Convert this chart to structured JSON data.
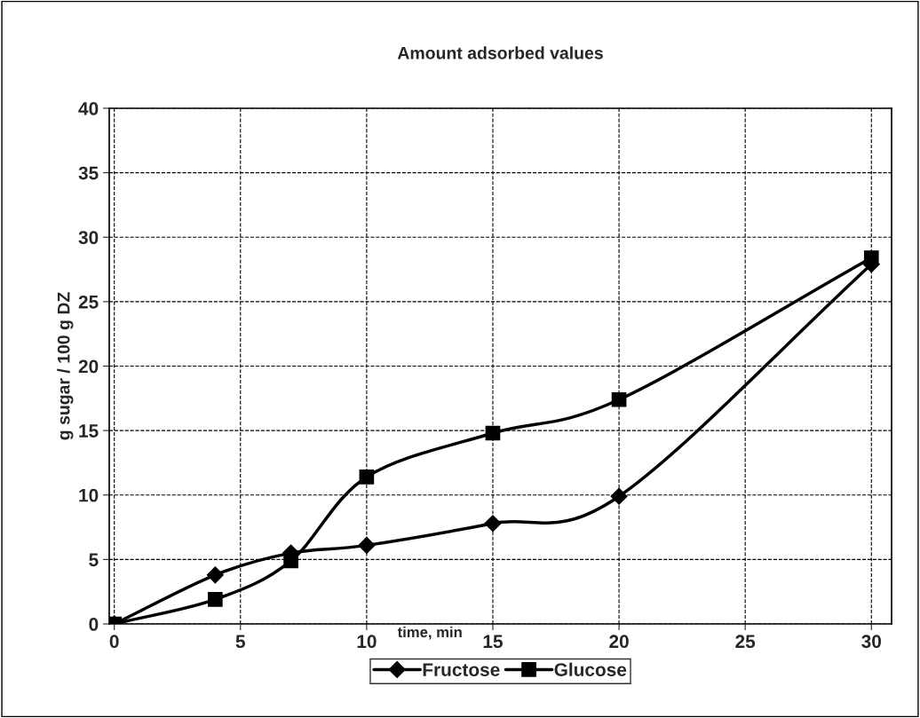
{
  "chart_data": {
    "type": "line",
    "title": "Amount adsorbed values",
    "xlabel": "time, min",
    "ylabel": "g sugar / 100 g DZ",
    "x": [
      0,
      4,
      7,
      10,
      15,
      20,
      30
    ],
    "series": [
      {
        "name": "Fructose",
        "color": "#000000",
        "marker": "diamond",
        "values": [
          0,
          3.8,
          5.5,
          6.1,
          7.8,
          9.9,
          27.9
        ]
      },
      {
        "name": "Glucose",
        "color": "#000000",
        "marker": "square",
        "values": [
          0,
          1.9,
          4.9,
          11.4,
          14.8,
          17.4,
          28.4
        ]
      }
    ],
    "xlim": [
      -0.2,
      30.8
    ],
    "xticks": [
      0,
      5,
      10,
      15,
      20,
      25,
      30
    ],
    "ylim": [
      0,
      40
    ],
    "yticks": [
      0,
      5,
      10,
      15,
      20,
      25,
      30,
      35,
      40
    ],
    "grid": true,
    "legend": "bottom",
    "line_style": "solid"
  }
}
